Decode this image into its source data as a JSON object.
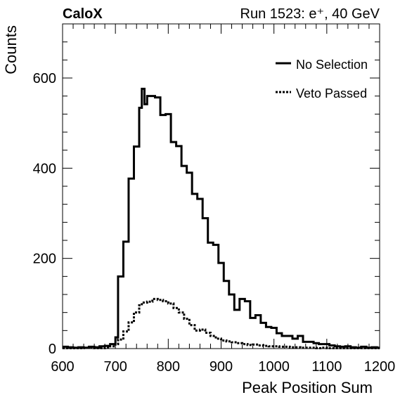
{
  "chart_data": {
    "type": "histogram",
    "header_left": "CaloX",
    "header_right": "Run 1523: e⁺, 40 GeV",
    "xlabel": "Peak Position Sum",
    "ylabel": "Counts",
    "xlim": [
      600,
      1200
    ],
    "ylim": [
      0,
      720
    ],
    "xticks": [
      600,
      700,
      800,
      900,
      1000,
      1100,
      1200
    ],
    "yticks": [
      0,
      200,
      400,
      600
    ],
    "legend_position": "top-right",
    "bin_width": 10,
    "series": [
      {
        "name": "No Selection",
        "style": "solid",
        "bins": [
          {
            "x": 600,
            "y": 4
          },
          {
            "x": 610,
            "y": 3
          },
          {
            "x": 620,
            "y": 2
          },
          {
            "x": 630,
            "y": 3
          },
          {
            "x": 640,
            "y": 2
          },
          {
            "x": 650,
            "y": 4
          },
          {
            "x": 660,
            "y": 3
          },
          {
            "x": 670,
            "y": 5
          },
          {
            "x": 680,
            "y": 6
          },
          {
            "x": 690,
            "y": 10
          },
          {
            "x": 700,
            "y": 25
          },
          {
            "x": 705,
            "y": 160
          },
          {
            "x": 715,
            "y": 237
          },
          {
            "x": 725,
            "y": 377
          },
          {
            "x": 735,
            "y": 448
          },
          {
            "x": 745,
            "y": 534
          },
          {
            "x": 750,
            "y": 576
          },
          {
            "x": 755,
            "y": 542
          },
          {
            "x": 760,
            "y": 560
          },
          {
            "x": 775,
            "y": 557
          },
          {
            "x": 785,
            "y": 518
          },
          {
            "x": 795,
            "y": 520
          },
          {
            "x": 805,
            "y": 458
          },
          {
            "x": 815,
            "y": 449
          },
          {
            "x": 825,
            "y": 405
          },
          {
            "x": 835,
            "y": 390
          },
          {
            "x": 845,
            "y": 343
          },
          {
            "x": 855,
            "y": 332
          },
          {
            "x": 865,
            "y": 289
          },
          {
            "x": 875,
            "y": 235
          },
          {
            "x": 885,
            "y": 230
          },
          {
            "x": 895,
            "y": 190
          },
          {
            "x": 905,
            "y": 150
          },
          {
            "x": 915,
            "y": 120
          },
          {
            "x": 925,
            "y": 86
          },
          {
            "x": 935,
            "y": 110
          },
          {
            "x": 945,
            "y": 105
          },
          {
            "x": 955,
            "y": 68
          },
          {
            "x": 965,
            "y": 74
          },
          {
            "x": 975,
            "y": 57
          },
          {
            "x": 985,
            "y": 48
          },
          {
            "x": 995,
            "y": 46
          },
          {
            "x": 1005,
            "y": 34
          },
          {
            "x": 1015,
            "y": 28
          },
          {
            "x": 1025,
            "y": 28
          },
          {
            "x": 1035,
            "y": 22
          },
          {
            "x": 1045,
            "y": 28
          },
          {
            "x": 1055,
            "y": 15
          },
          {
            "x": 1065,
            "y": 15
          },
          {
            "x": 1075,
            "y": 12
          },
          {
            "x": 1085,
            "y": 10
          },
          {
            "x": 1095,
            "y": 10
          },
          {
            "x": 1105,
            "y": 7
          },
          {
            "x": 1115,
            "y": 5
          },
          {
            "x": 1125,
            "y": 4
          },
          {
            "x": 1135,
            "y": 5
          },
          {
            "x": 1145,
            "y": 3
          },
          {
            "x": 1155,
            "y": 2
          },
          {
            "x": 1165,
            "y": 4
          },
          {
            "x": 1175,
            "y": 2
          },
          {
            "x": 1185,
            "y": 3
          },
          {
            "x": 1195,
            "y": 2
          }
        ]
      },
      {
        "name": "Veto Passed",
        "style": "dotted",
        "bins": [
          {
            "x": 600,
            "y": 1
          },
          {
            "x": 620,
            "y": 1
          },
          {
            "x": 640,
            "y": 2
          },
          {
            "x": 660,
            "y": 1
          },
          {
            "x": 680,
            "y": 2
          },
          {
            "x": 690,
            "y": 5
          },
          {
            "x": 700,
            "y": 10
          },
          {
            "x": 705,
            "y": 20
          },
          {
            "x": 715,
            "y": 38
          },
          {
            "x": 725,
            "y": 58
          },
          {
            "x": 735,
            "y": 80
          },
          {
            "x": 745,
            "y": 96
          },
          {
            "x": 750,
            "y": 102
          },
          {
            "x": 760,
            "y": 104
          },
          {
            "x": 770,
            "y": 110
          },
          {
            "x": 780,
            "y": 108
          },
          {
            "x": 790,
            "y": 105
          },
          {
            "x": 800,
            "y": 100
          },
          {
            "x": 810,
            "y": 90
          },
          {
            "x": 820,
            "y": 80
          },
          {
            "x": 830,
            "y": 66
          },
          {
            "x": 840,
            "y": 52
          },
          {
            "x": 850,
            "y": 40
          },
          {
            "x": 860,
            "y": 42
          },
          {
            "x": 870,
            "y": 35
          },
          {
            "x": 880,
            "y": 28
          },
          {
            "x": 890,
            "y": 22
          },
          {
            "x": 900,
            "y": 18
          },
          {
            "x": 910,
            "y": 16
          },
          {
            "x": 920,
            "y": 14
          },
          {
            "x": 930,
            "y": 12
          },
          {
            "x": 940,
            "y": 10
          },
          {
            "x": 950,
            "y": 8
          },
          {
            "x": 960,
            "y": 9
          },
          {
            "x": 970,
            "y": 7
          },
          {
            "x": 980,
            "y": 6
          },
          {
            "x": 990,
            "y": 5
          },
          {
            "x": 1000,
            "y": 5
          },
          {
            "x": 1010,
            "y": 4
          },
          {
            "x": 1020,
            "y": 4
          },
          {
            "x": 1030,
            "y": 3
          },
          {
            "x": 1040,
            "y": 3
          },
          {
            "x": 1050,
            "y": 2
          },
          {
            "x": 1060,
            "y": 2
          },
          {
            "x": 1070,
            "y": 2
          },
          {
            "x": 1080,
            "y": 1
          },
          {
            "x": 1090,
            "y": 2
          },
          {
            "x": 1100,
            "y": 1
          },
          {
            "x": 1120,
            "y": 1
          },
          {
            "x": 1140,
            "y": 1
          },
          {
            "x": 1160,
            "y": 1
          },
          {
            "x": 1180,
            "y": 1
          },
          {
            "x": 1200,
            "y": 1
          }
        ]
      }
    ]
  }
}
